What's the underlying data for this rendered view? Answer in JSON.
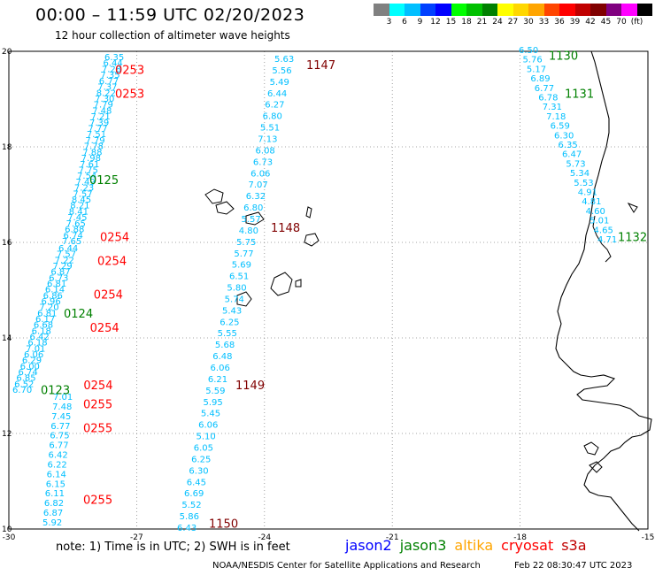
{
  "header": {
    "title": "00:00 – 11:59 UTC 02/20/2023",
    "subtitle": "12 hour collection of altimeter wave heights"
  },
  "colorbar": {
    "colors": [
      "#808080",
      "#00ffff",
      "#00bfff",
      "#0040ff",
      "#0000ff",
      "#00ff00",
      "#00c000",
      "#008000",
      "#ffff00",
      "#ffd700",
      "#ffa500",
      "#ff4500",
      "#ff0000",
      "#c00000",
      "#800000",
      "#800080",
      "#ff00ff",
      "#000000"
    ],
    "tick_labels": [
      "3",
      "6",
      "9",
      "12",
      "15",
      "18",
      "21",
      "24",
      "27",
      "30",
      "33",
      "36",
      "39",
      "42",
      "45",
      "70",
      "(ft)"
    ]
  },
  "map": {
    "lat_labels": [
      "20",
      "18",
      "16",
      "14",
      "12",
      "10"
    ],
    "lon_labels": [
      "-30",
      "-27",
      "-24",
      "-21",
      "-18",
      "-15"
    ],
    "lat_range": [
      10,
      20
    ],
    "lon_range": [
      -30,
      -15
    ],
    "grid": "dotted",
    "coastline_icon": "west-africa-coastline",
    "islands_icon": "cape-verde-islands"
  },
  "tracks": [
    {
      "satellite": "jason3",
      "lon": -27.2,
      "lat_start": 19.8,
      "lon_end": -28.6,
      "lat_end": 15.9,
      "color": "#00bfff",
      "values": [
        "6.35",
        "6.44",
        "7.28",
        "7.35",
        "6.77",
        "7.37",
        "8.22",
        "7.30",
        "7.79",
        "7.48",
        "7.21",
        "7.39",
        "7.77",
        "7.51",
        "7.79",
        "7.78",
        "7.88",
        "7.98",
        "7.61",
        "7.75",
        "7.54",
        "7.49",
        "7.23",
        "7.57",
        "8.45",
        "8.21",
        "8.41",
        "7.45",
        "7.65",
        "6.88",
        "6.74",
        "7.65"
      ],
      "time_labels": [
        {
          "text": "0253",
          "lat": 19.6
        },
        {
          "text": "0253",
          "lat": 19.1
        },
        {
          "text": "0254",
          "lat": 16.1
        }
      ]
    },
    {
      "satellite": "jason3",
      "lon": -28.8,
      "lat_start": 15.9,
      "lon_end": -29.6,
      "lat_end": 13.5,
      "color": "#00bfff",
      "values": [
        "6.44",
        "7.57",
        "7.22",
        "7.29",
        "6.87",
        "6.73",
        "6.81",
        "6.14",
        "6.86",
        "6.96",
        "7.20",
        "6.81",
        "6.17",
        "6.68",
        "6.18",
        "6.42",
        "6.18",
        "7.01",
        "6.06",
        "6.29",
        "6.00",
        "6.74",
        "6.85",
        "6.52",
        "6.70"
      ],
      "time_labels": [
        {
          "text": "0254",
          "lat": 15.6
        },
        {
          "text": "0254",
          "lat": 14.9
        },
        {
          "text": "0254",
          "lat": 14.2
        },
        {
          "text": "0254",
          "lat": 13.0
        }
      ]
    },
    {
      "satellite": "jason3",
      "lon": -28.9,
      "lat_start": 13.2,
      "lon_end": -28.9,
      "lat_end": 10.3,
      "color": "#00bfff",
      "values": [
        "7.01",
        "7.48",
        "7.45",
        "6.77",
        "6.75",
        "6.77",
        "6.42",
        "6.22",
        "6.14",
        "6.15",
        "6.11",
        "6.82",
        "6.87",
        "5.92"
      ],
      "time_labels": [
        {
          "text": "0255",
          "lat": 12.6
        },
        {
          "text": "0255",
          "lat": 12.1
        },
        {
          "text": "0255",
          "lat": 10.6
        }
      ]
    },
    {
      "satellite": "jason3-green",
      "color": "#008000",
      "time_labels": [
        {
          "text": "0125",
          "lat": 17.3
        },
        {
          "text": "0124",
          "lat": 14.5
        },
        {
          "text": "0123",
          "lat": 12.9
        }
      ]
    },
    {
      "satellite": "cryosat",
      "color": "#00bfff",
      "values": [
        "5.63",
        "5.56",
        "5.49",
        "6.44",
        "6.27",
        "6.80",
        "5.51",
        "7.13",
        "6.08",
        "6.73",
        "6.06",
        "7.07",
        "6.32",
        "6.80",
        "5.57",
        "4.80",
        "5.75",
        "5.77",
        "5.69",
        "6.51",
        "5.80",
        "5.74",
        "5.43",
        "6.25",
        "5.55",
        "5.68",
        "6.48",
        "6.06",
        "6.21",
        "5.59",
        "5.95",
        "5.45",
        "6.06",
        "5.10",
        "6.05",
        "6.25",
        "6.30",
        "6.45",
        "6.69",
        "5.52",
        "5.86",
        "6.43"
      ],
      "time_labels": [
        {
          "text": "1147",
          "lat": 19.7
        },
        {
          "text": "1148",
          "lat": 16.3
        },
        {
          "text": "1149",
          "lat": 13.0
        },
        {
          "text": "1150",
          "lat": 10.1
        }
      ]
    },
    {
      "satellite": "cryosat-east",
      "color": "#00bfff",
      "values": [
        "6.50",
        "5.76",
        "5.17",
        "6.89",
        "6.77",
        "6.78",
        "7.31",
        "7.18",
        "6.59",
        "6.30",
        "6.35",
        "6.47",
        "5.73",
        "5.34",
        "5.53",
        "4.91",
        "4.81",
        "4.60",
        "5.01",
        "4.65",
        "4.71"
      ],
      "time_labels": [
        {
          "text": "1130",
          "lat": 19.9
        },
        {
          "text": "1131",
          "lat": 19.1
        },
        {
          "text": "1132",
          "lat": 16.1
        }
      ]
    }
  ],
  "footer": {
    "note": "note:  1) Time is in UTC;  2) SWH is in feet",
    "satellites": [
      {
        "name": "jason2",
        "color": "#0000ff"
      },
      {
        "name": "jason3",
        "color": "#008000"
      },
      {
        "name": "altika",
        "color": "#ffa500"
      },
      {
        "name": "cryosat",
        "color": "#ff0000"
      },
      {
        "name": "s3a",
        "color": "#c00000"
      }
    ],
    "credit": "NOAA/NESDIS Center for Satellite Applications and Research",
    "timestamp": "Feb 22 08:30:47 UTC 2023"
  }
}
